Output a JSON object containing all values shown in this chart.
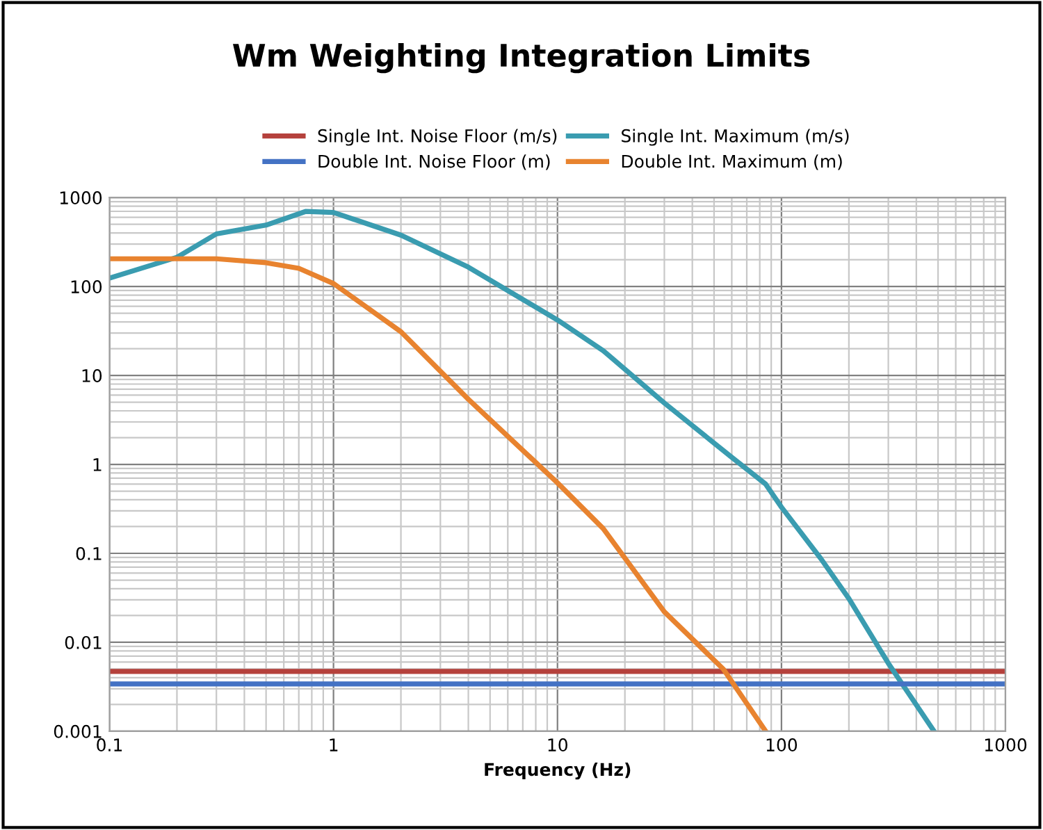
{
  "chart_data": {
    "type": "line",
    "title": "Wm Weighting Integration Limits",
    "xlabel": "Frequency (Hz)",
    "log": "xy",
    "grid": true,
    "legend": "top",
    "marker": "none",
    "line_style": "solid",
    "xlim": [
      0.1,
      1000
    ],
    "xticks": [
      0.1,
      1,
      10,
      100,
      1000
    ],
    "ylim": [
      0.001,
      1000
    ],
    "yticks": [
      0.001,
      0.01,
      0.1,
      1,
      10,
      100,
      1000
    ],
    "series": [
      {
        "name": "Single Int. Noise Floor (m/s)",
        "color": "#b5413c",
        "x": [
          0.1,
          1000
        ],
        "values": [
          0.0047,
          0.0047
        ]
      },
      {
        "name": "Single Int. Maximum (m/s)",
        "color": "#3a9cb0",
        "x": [
          0.1,
          0.2,
          0.3,
          0.5,
          0.75,
          1,
          2,
          4,
          10,
          16,
          30,
          60,
          85,
          100,
          150,
          200,
          300,
          480
        ],
        "values": [
          124,
          213,
          390,
          490,
          697,
          680,
          378,
          165,
          42,
          19,
          4.9,
          1.2,
          0.6,
          0.33,
          0.087,
          0.031,
          0.0058,
          0.001
        ]
      },
      {
        "name": "Double Int. Noise Floor (m)",
        "color": "#4472c4",
        "x": [
          0.1,
          1000
        ],
        "values": [
          0.0034,
          0.0034
        ]
      },
      {
        "name": "Double Int. Maximum (m)",
        "color": "#e8832f",
        "x": [
          0.1,
          0.3,
          0.5,
          0.7,
          1,
          2,
          4,
          10,
          16,
          30,
          55,
          85
        ],
        "values": [
          205,
          205,
          185,
          160,
          108,
          31,
          5.4,
          0.62,
          0.19,
          0.022,
          0.005,
          0.001
        ]
      }
    ]
  }
}
